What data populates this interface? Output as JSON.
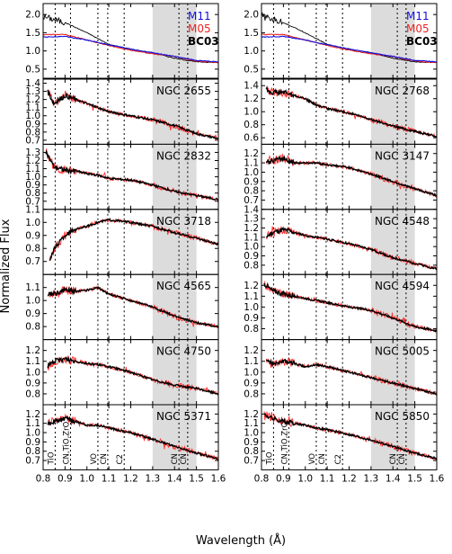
{
  "figure": {
    "ylabel": "Normalized Flux",
    "xlabel": "Wavelength (Å)",
    "xlim": [
      0.8,
      1.6
    ],
    "xticks": [
      "0.8",
      "0.9",
      "1.0",
      "1.1",
      "1.2",
      "1.3",
      "1.4",
      "1.5",
      "1.6"
    ]
  },
  "colors": {
    "M11": "#1010e0",
    "M05": "#ee2222",
    "BC03": "#000000",
    "galaxy_observed": "#ff2a2a",
    "galaxy_model": "#000000",
    "shade": "#dcdcdc",
    "feature_line": "#000000"
  },
  "features": [
    {
      "label": "TiO",
      "x": 0.855
    },
    {
      "label": "CN,TiO,ZrO",
      "x": 0.925
    },
    {
      "label": "VO",
      "x": 1.05
    },
    {
      "label": "CN",
      "x": 1.095
    },
    {
      "label": "C2",
      "x": 1.17
    },
    {
      "label": "CN",
      "x": 1.42
    },
    {
      "label": "CN",
      "x": 1.46
    }
  ],
  "shaded_region": [
    1.3,
    1.5
  ],
  "chart_data": [
    {
      "type": "line",
      "panel": "models-left",
      "legend": [
        "M11",
        "M05",
        "BC03"
      ],
      "ylim": [
        0.25,
        2.3
      ],
      "yticks": [
        "0.5",
        "1.0",
        "1.5",
        "2.0"
      ],
      "x": [
        0.8,
        0.9,
        1.0,
        1.1,
        1.2,
        1.3,
        1.4,
        1.5,
        1.6
      ],
      "series": [
        {
          "name": "BC03",
          "values": [
            1.95,
            1.78,
            1.5,
            1.18,
            1.05,
            0.95,
            0.8,
            0.7,
            0.68
          ]
        },
        {
          "name": "M05",
          "values": [
            1.45,
            1.45,
            1.3,
            1.15,
            1.02,
            0.92,
            0.85,
            0.72,
            0.68
          ]
        },
        {
          "name": "M11",
          "values": [
            1.38,
            1.4,
            1.3,
            1.17,
            1.05,
            0.95,
            0.85,
            0.74,
            0.7
          ]
        }
      ]
    },
    {
      "type": "line",
      "panel": "models-right",
      "legend": [
        "M11",
        "M05",
        "BC03"
      ],
      "ylim": [
        0.25,
        2.3
      ],
      "yticks": [
        "0.5",
        "1.0",
        "1.5",
        "2.0"
      ],
      "x": [
        0.8,
        0.9,
        1.0,
        1.1,
        1.2,
        1.3,
        1.4,
        1.5,
        1.6
      ],
      "series": [
        {
          "name": "BC03",
          "values": [
            1.95,
            1.78,
            1.5,
            1.18,
            1.05,
            0.95,
            0.8,
            0.7,
            0.68
          ]
        },
        {
          "name": "M05",
          "values": [
            1.45,
            1.45,
            1.3,
            1.15,
            1.02,
            0.92,
            0.85,
            0.72,
            0.68
          ]
        },
        {
          "name": "M11",
          "values": [
            1.38,
            1.4,
            1.3,
            1.17,
            1.05,
            0.95,
            0.85,
            0.74,
            0.7
          ]
        }
      ]
    },
    {
      "type": "line",
      "label": "NGC 2655",
      "ylim": [
        0.65,
        1.45
      ],
      "yticks": [
        "0.7",
        "0.8",
        "0.9",
        "1.0",
        "1.1",
        "1.2",
        "1.3",
        "1.4"
      ],
      "x": [
        0.82,
        0.85,
        0.9,
        0.95,
        1.0,
        1.05,
        1.1,
        1.2,
        1.3,
        1.4,
        1.5,
        1.6
      ],
      "values": [
        1.3,
        1.15,
        1.25,
        1.2,
        1.15,
        1.1,
        1.05,
        1.0,
        0.95,
        0.88,
        0.78,
        0.72
      ]
    },
    {
      "type": "line",
      "label": "NGC 2768",
      "ylim": [
        0.5,
        1.5
      ],
      "yticks": [
        "0.6",
        "0.8",
        "1.0",
        "1.2",
        "1.4"
      ],
      "x": [
        0.82,
        0.85,
        0.9,
        0.95,
        1.0,
        1.05,
        1.1,
        1.2,
        1.3,
        1.4,
        1.5,
        1.6
      ],
      "values": [
        1.35,
        1.3,
        1.3,
        1.25,
        1.2,
        1.1,
        1.05,
        0.98,
        0.88,
        0.78,
        0.7,
        0.62
      ]
    },
    {
      "type": "line",
      "label": "NGC 2832",
      "ylim": [
        0.6,
        1.4
      ],
      "yticks": [
        "0.7",
        "0.8",
        "0.9",
        "1.0",
        "1.1",
        "1.2",
        "1.3"
      ],
      "x": [
        0.81,
        0.85,
        0.9,
        0.95,
        1.0,
        1.05,
        1.1,
        1.2,
        1.3,
        1.4,
        1.5,
        1.6
      ],
      "values": [
        1.32,
        1.12,
        1.08,
        1.07,
        1.04,
        1.02,
        0.98,
        0.96,
        0.9,
        0.82,
        0.77,
        0.72
      ]
    },
    {
      "type": "line",
      "label": "NGC 3147",
      "ylim": [
        0.6,
        1.3
      ],
      "yticks": [
        "0.7",
        "0.8",
        "0.9",
        "1.0",
        "1.1",
        "1.2"
      ],
      "x": [
        0.82,
        0.85,
        0.9,
        0.95,
        1.0,
        1.05,
        1.1,
        1.2,
        1.3,
        1.4,
        1.5,
        1.6
      ],
      "values": [
        1.1,
        1.12,
        1.15,
        1.1,
        1.1,
        1.1,
        1.08,
        1.05,
        0.98,
        0.9,
        0.82,
        0.75
      ]
    },
    {
      "type": "line",
      "label": "NGC 3718",
      "ylim": [
        0.6,
        1.1
      ],
      "yticks": [
        "0.7",
        "0.8",
        "0.9",
        "1.0",
        "1.1"
      ],
      "x": [
        0.83,
        0.86,
        0.9,
        0.95,
        1.0,
        1.05,
        1.1,
        1.2,
        1.3,
        1.4,
        1.5,
        1.6
      ],
      "values": [
        0.72,
        0.82,
        0.9,
        0.95,
        0.97,
        1.0,
        1.02,
        1.0,
        0.97,
        0.92,
        0.88,
        0.83
      ]
    },
    {
      "type": "line",
      "label": "NGC 4548",
      "ylim": [
        0.7,
        1.4
      ],
      "yticks": [
        "0.8",
        "0.9",
        "1.0",
        "1.1",
        "1.2",
        "1.3",
        "1.4"
      ],
      "x": [
        0.82,
        0.85,
        0.9,
        0.95,
        1.0,
        1.05,
        1.1,
        1.2,
        1.3,
        1.4,
        1.5,
        1.6
      ],
      "values": [
        1.1,
        1.15,
        1.18,
        1.15,
        1.12,
        1.1,
        1.08,
        1.03,
        0.97,
        0.88,
        0.82,
        0.76
      ]
    },
    {
      "type": "line",
      "label": "NGC 4565",
      "ylim": [
        0.7,
        1.2
      ],
      "yticks": [
        "0.8",
        "0.9",
        "1.0",
        "1.1"
      ],
      "x": [
        0.82,
        0.85,
        0.9,
        0.95,
        1.0,
        1.05,
        1.1,
        1.2,
        1.3,
        1.4,
        1.5,
        1.6
      ],
      "values": [
        1.05,
        1.05,
        1.08,
        1.07,
        1.08,
        1.1,
        1.05,
        1.0,
        0.95,
        0.88,
        0.83,
        0.8
      ]
    },
    {
      "type": "line",
      "label": "NGC 4594",
      "ylim": [
        0.7,
        1.3
      ],
      "yticks": [
        "0.8",
        "0.9",
        "1.0",
        "1.1",
        "1.2"
      ],
      "x": [
        0.81,
        0.85,
        0.9,
        0.95,
        1.0,
        1.05,
        1.1,
        1.2,
        1.3,
        1.4,
        1.5,
        1.6
      ],
      "values": [
        1.22,
        1.15,
        1.12,
        1.1,
        1.08,
        1.06,
        1.04,
        1.0,
        0.97,
        0.9,
        0.82,
        0.78
      ]
    },
    {
      "type": "line",
      "label": "NGC 4750",
      "ylim": [
        0.7,
        1.3
      ],
      "yticks": [
        "0.8",
        "0.9",
        "1.0",
        "1.1",
        "1.2"
      ],
      "x": [
        0.82,
        0.85,
        0.9,
        0.95,
        1.0,
        1.05,
        1.1,
        1.2,
        1.3,
        1.4,
        1.5,
        1.6
      ],
      "values": [
        1.05,
        1.1,
        1.12,
        1.1,
        1.08,
        1.07,
        1.05,
        1.0,
        0.93,
        0.88,
        0.85,
        0.8
      ]
    },
    {
      "type": "line",
      "label": "NGC 5005",
      "ylim": [
        0.7,
        1.3
      ],
      "yticks": [
        "0.8",
        "0.9",
        "1.0",
        "1.1",
        "1.2"
      ],
      "x": [
        0.82,
        0.85,
        0.9,
        0.95,
        1.0,
        1.05,
        1.1,
        1.2,
        1.3,
        1.4,
        1.5,
        1.6
      ],
      "values": [
        1.1,
        1.08,
        1.1,
        1.08,
        1.05,
        1.07,
        1.05,
        1.0,
        0.95,
        0.9,
        0.85,
        0.8
      ]
    },
    {
      "type": "line",
      "label": "NGC 5371",
      "ylim": [
        0.6,
        1.3
      ],
      "yticks": [
        "0.7",
        "0.8",
        "0.9",
        "1.0",
        "1.1",
        "1.2"
      ],
      "x": [
        0.82,
        0.85,
        0.9,
        0.95,
        1.0,
        1.05,
        1.1,
        1.2,
        1.3,
        1.4,
        1.5,
        1.6
      ],
      "values": [
        1.1,
        1.12,
        1.15,
        1.12,
        1.08,
        1.08,
        1.05,
        1.0,
        0.93,
        0.85,
        0.78,
        0.72
      ]
    },
    {
      "type": "line",
      "label": "NGC 5850",
      "ylim": [
        0.6,
        1.3
      ],
      "yticks": [
        "0.7",
        "0.8",
        "0.9",
        "1.0",
        "1.1",
        "1.2"
      ],
      "x": [
        0.81,
        0.85,
        0.9,
        0.95,
        1.0,
        1.05,
        1.1,
        1.2,
        1.3,
        1.4,
        1.5,
        1.6
      ],
      "values": [
        1.2,
        1.15,
        1.12,
        1.1,
        1.08,
        1.05,
        1.03,
        0.98,
        0.92,
        0.85,
        0.78,
        0.72
      ]
    }
  ]
}
